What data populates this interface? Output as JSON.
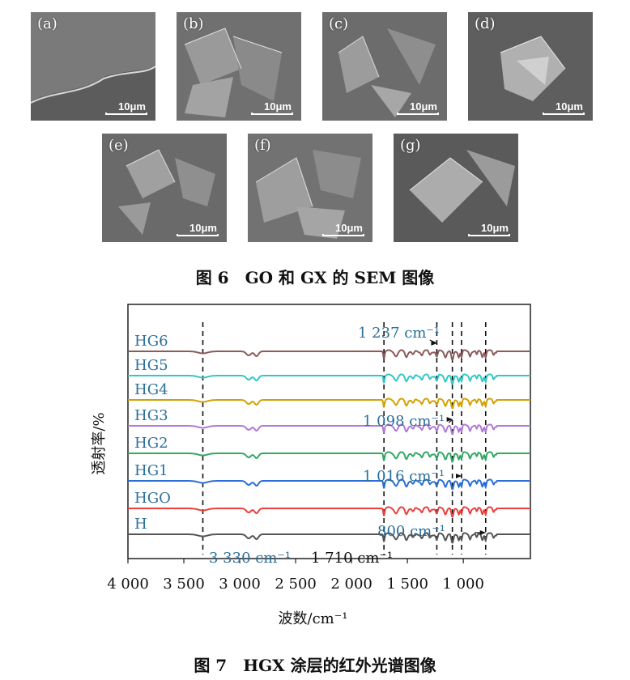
{
  "figure6": {
    "caption": "图 6　GO 和 GX 的 SEM 图像",
    "panels": [
      {
        "label": "(a)",
        "scale": "10μm"
      },
      {
        "label": "(b)",
        "scale": "10μm"
      },
      {
        "label": "(c)",
        "scale": "10μm"
      },
      {
        "label": "(d)",
        "scale": "10μm"
      },
      {
        "label": "(e)",
        "scale": "10μm"
      },
      {
        "label": "(f)",
        "scale": "10μm"
      },
      {
        "label": "(g)",
        "scale": "10μm"
      }
    ]
  },
  "figure7": {
    "caption": "图 7　HGX 涂层的红外光谱图像"
  },
  "chart_data": {
    "type": "line",
    "title": "",
    "xlabel": "波数/cm⁻¹",
    "ylabel": "透射率/%",
    "xlim": [
      4000,
      400
    ],
    "x_reversed": true,
    "x_ticks": [
      4000,
      3500,
      3000,
      2500,
      2000,
      1500,
      1000
    ],
    "x_tick_labels": [
      "4 000",
      "3 500",
      "3 000",
      "2 500",
      "2 000",
      "1 500",
      "1 000"
    ],
    "series": [
      {
        "name": "HG6",
        "color": "#8b5a5a"
      },
      {
        "name": "HG5",
        "color": "#33c7c7"
      },
      {
        "name": "HG4",
        "color": "#d4a200"
      },
      {
        "name": "HG3",
        "color": "#b07ad6"
      },
      {
        "name": "HG2",
        "color": "#33a864"
      },
      {
        "name": "HG1",
        "color": "#2c6fd6"
      },
      {
        "name": "HGO",
        "color": "#e8403c"
      },
      {
        "name": "H",
        "color": "#555555"
      }
    ],
    "reference_lines": [
      3330,
      1710,
      1237,
      1098,
      1016,
      800
    ],
    "annotations": [
      {
        "text": "1 237 cm⁻¹"
      },
      {
        "text": "1 098 cm⁻¹"
      },
      {
        "text": "1 016 cm⁻¹"
      },
      {
        "text": "800 cm⁻¹"
      },
      {
        "text": "3 330 cm⁻¹"
      },
      {
        "text": "1 710 cm⁻¹"
      }
    ],
    "label_color": "#2a6f9b"
  }
}
